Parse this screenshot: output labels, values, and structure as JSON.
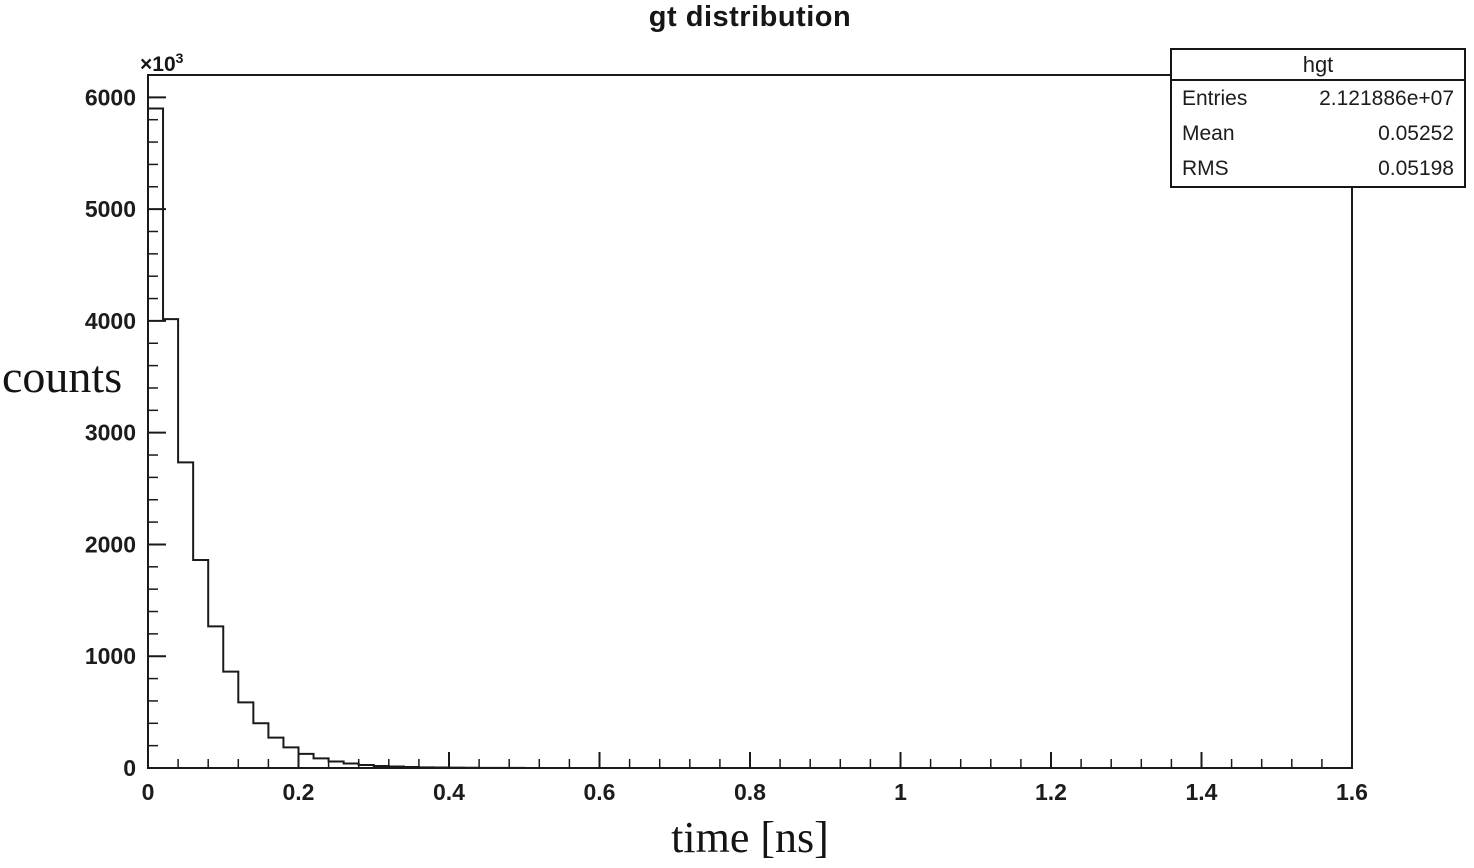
{
  "chart_data": {
    "type": "histogram",
    "title": "gt distribution",
    "xlabel": "time [ns]",
    "ylabel": "counts",
    "y_scale_prefix": "×10",
    "y_scale_exponent": "3",
    "x_range": [
      0,
      1.6
    ],
    "y_range": [
      0,
      6200
    ],
    "x_major_ticks": [
      0,
      0.2,
      0.4,
      0.6,
      0.8,
      1,
      1.2,
      1.4,
      1.6
    ],
    "x_tick_labels": [
      "0",
      "0.2",
      "0.4",
      "0.6",
      "0.8",
      "1",
      "1.2",
      "1.4",
      "1.6"
    ],
    "x_minor_step": 0.04,
    "y_major_ticks": [
      0,
      1000,
      2000,
      3000,
      4000,
      5000,
      6000
    ],
    "y_tick_labels": [
      "0",
      "1000",
      "2000",
      "3000",
      "4000",
      "5000",
      "6000"
    ],
    "y_minor_step": 200,
    "grid": false,
    "legend_position": "top-right",
    "bin_start_ns": 0,
    "bin_width_ns": 0.02,
    "n_bins": 80,
    "counts_thousands": [
      5900,
      4016,
      2734,
      1861,
      1267,
      862,
      587,
      400,
      272,
      185,
      126,
      86,
      58,
      40,
      27,
      18,
      13,
      9,
      6,
      4,
      3,
      2,
      1,
      1,
      1
    ]
  },
  "stats": {
    "title": "hgt",
    "rows": [
      {
        "label": "Entries",
        "value": "2.121886e+07"
      },
      {
        "label": "Mean",
        "value": "0.05252"
      },
      {
        "label": "RMS",
        "value": "0.05198"
      }
    ]
  }
}
